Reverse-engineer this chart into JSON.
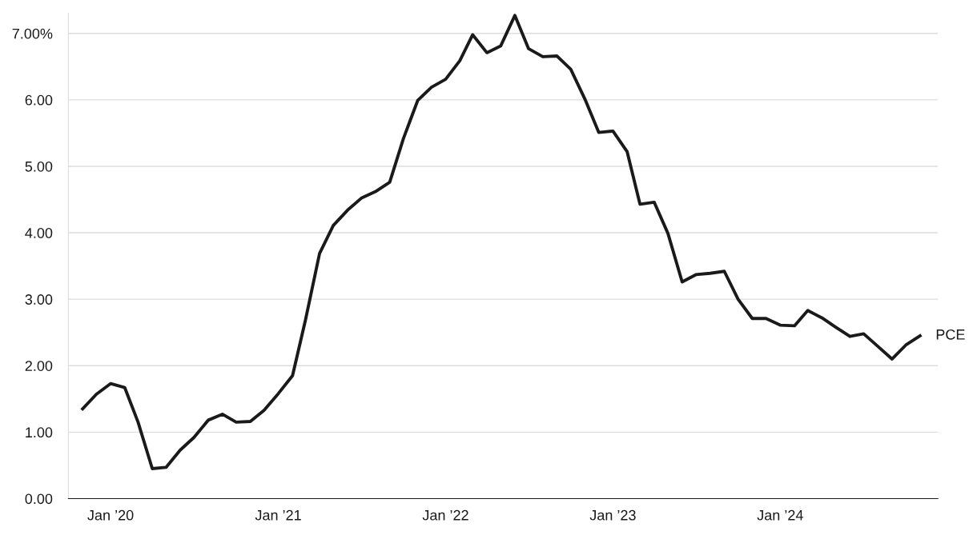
{
  "chart_data": {
    "type": "line",
    "x": [
      "2019-11",
      "2019-12",
      "2020-01",
      "2020-02",
      "2020-03",
      "2020-04",
      "2020-05",
      "2020-06",
      "2020-07",
      "2020-08",
      "2020-09",
      "2020-10",
      "2020-11",
      "2020-12",
      "2021-01",
      "2021-02",
      "2021-03",
      "2021-04",
      "2021-05",
      "2021-06",
      "2021-07",
      "2021-08",
      "2021-09",
      "2021-10",
      "2021-11",
      "2021-12",
      "2022-01",
      "2022-02",
      "2022-03",
      "2022-04",
      "2022-05",
      "2022-06",
      "2022-07",
      "2022-08",
      "2022-09",
      "2022-10",
      "2022-11",
      "2022-12",
      "2023-01",
      "2023-02",
      "2023-03",
      "2023-04",
      "2023-05",
      "2023-06",
      "2023-07",
      "2023-08",
      "2023-09",
      "2023-10",
      "2023-11",
      "2023-12",
      "2024-01",
      "2024-02",
      "2024-03",
      "2024-04",
      "2024-05",
      "2024-06",
      "2024-07",
      "2024-08",
      "2024-09",
      "2024-10",
      "2024-11"
    ],
    "series": [
      {
        "name": "PCE",
        "color": "#1a1a1a",
        "values": [
          1.35,
          1.57,
          1.73,
          1.67,
          1.15,
          0.45,
          0.47,
          0.73,
          0.92,
          1.18,
          1.27,
          1.15,
          1.16,
          1.33,
          1.58,
          1.85,
          2.68,
          3.69,
          4.11,
          4.34,
          4.52,
          4.62,
          4.76,
          5.42,
          5.99,
          6.19,
          6.31,
          6.59,
          6.98,
          6.71,
          6.81,
          7.27,
          6.77,
          6.65,
          6.66,
          6.46,
          6.01,
          5.51,
          5.53,
          5.22,
          4.43,
          4.46,
          3.99,
          3.26,
          3.37,
          3.39,
          3.42,
          3.0,
          2.71,
          2.71,
          2.61,
          2.6,
          2.83,
          2.72,
          2.58,
          2.44,
          2.48,
          2.29,
          2.1,
          2.31,
          2.45
        ]
      }
    ],
    "xlim": [
      "2019-10-01",
      "2024-12-10"
    ],
    "xticks": [
      {
        "value": "2020-01",
        "label": "Jan ’20"
      },
      {
        "value": "2021-01",
        "label": "Jan ’21"
      },
      {
        "value": "2022-01",
        "label": "Jan ’22"
      },
      {
        "value": "2023-01",
        "label": "Jan ’23"
      },
      {
        "value": "2024-01",
        "label": "Jan ’24"
      }
    ],
    "ylim": [
      0,
      7.3
    ],
    "yticks": [
      {
        "value": 0,
        "label": "0.00"
      },
      {
        "value": 1,
        "label": "1.00"
      },
      {
        "value": 2,
        "label": "2.00"
      },
      {
        "value": 3,
        "label": "3.00"
      },
      {
        "value": 4,
        "label": "4.00"
      },
      {
        "value": 5,
        "label": "5.00"
      },
      {
        "value": 6,
        "label": "6.00"
      },
      {
        "value": 7,
        "label": "7.00%"
      }
    ],
    "grid": "y",
    "marker": "none",
    "line_style": "solid",
    "legend": false
  }
}
